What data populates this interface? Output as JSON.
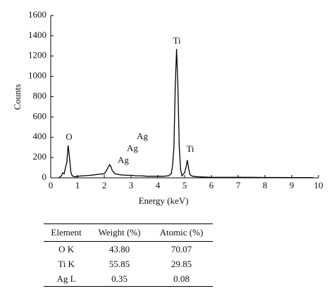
{
  "chart_data": {
    "type": "line",
    "x_label": "Energy (keV)",
    "y_label": "Counts",
    "x": [
      0.3,
      0.4,
      0.45,
      0.5,
      0.55,
      0.6,
      0.65,
      0.7,
      0.75,
      0.8,
      0.9,
      1.0,
      1.2,
      1.5,
      1.8,
      2.0,
      2.1,
      2.2,
      2.25,
      2.3,
      2.4,
      2.6,
      2.8,
      3.0,
      3.2,
      3.4,
      3.6,
      3.8,
      4.0,
      4.2,
      4.4,
      4.5,
      4.55,
      4.6,
      4.65,
      4.7,
      4.75,
      4.8,
      4.85,
      4.9,
      5.0,
      5.05,
      5.1,
      5.15,
      5.2,
      5.3,
      5.5,
      6.0,
      6.5,
      7.0,
      7.5,
      8.0,
      8.5,
      9.0,
      9.5,
      9.8
    ],
    "series": [
      {
        "color": "#000000",
        "values": [
          0,
          20,
          50,
          40,
          100,
          150,
          320,
          200,
          60,
          20,
          10,
          15,
          20,
          25,
          35,
          40,
          80,
          130,
          110,
          70,
          40,
          30,
          25,
          25,
          20,
          20,
          15,
          15,
          15,
          15,
          20,
          40,
          120,
          300,
          900,
          1270,
          900,
          300,
          80,
          20,
          50,
          100,
          175,
          90,
          30,
          15,
          10,
          5,
          5,
          5,
          5,
          3,
          3,
          2,
          2,
          2
        ]
      }
    ],
    "xlim": [
      0,
      10
    ],
    "xticks": [
      0,
      1,
      2,
      3,
      4,
      5,
      6,
      7,
      8,
      9,
      10
    ],
    "ylim": [
      0,
      1600
    ],
    "yticks": [
      0,
      200,
      400,
      600,
      800,
      1000,
      1200,
      1400,
      1600
    ],
    "annotations": [
      "O",
      "Ag",
      "Ag",
      "Ag",
      "Ti",
      "Ti"
    ]
  },
  "table": {
    "header": [
      "Element",
      "Weight (%)",
      "Atomic (%)"
    ],
    "rows": [
      [
        "O K",
        "43.80",
        "70.07"
      ],
      [
        "Ti K",
        "55.85",
        "29.85"
      ],
      [
        "Ag L",
        "0.35",
        "0.08"
      ]
    ]
  }
}
